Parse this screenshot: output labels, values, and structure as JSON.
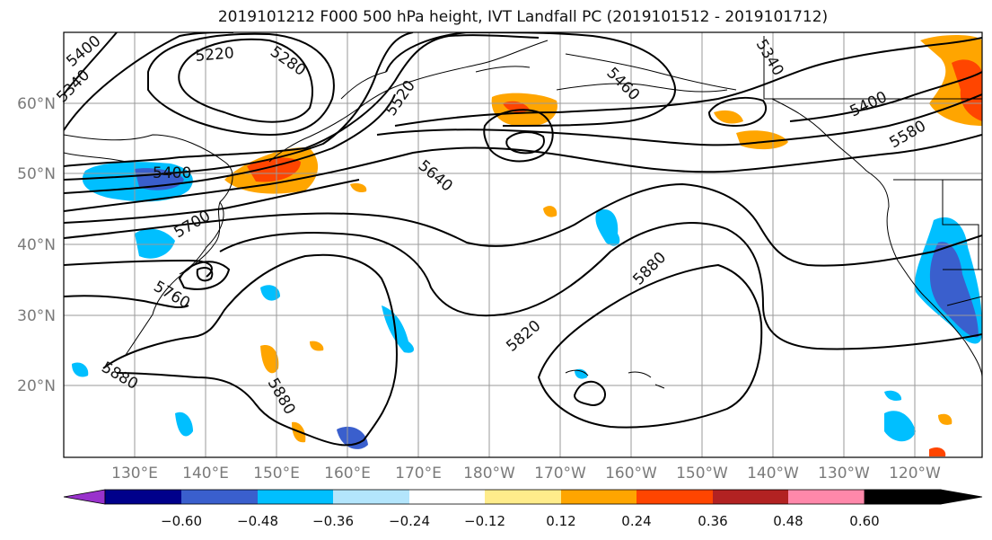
{
  "title": "2019101212 F000 500 hPa height, IVT Landfall PC (2019101512 - 2019101712)",
  "map": {
    "lat_labels": [
      "60°N",
      "50°N",
      "40°N",
      "30°N",
      "20°N"
    ],
    "lon_labels": [
      "130°E",
      "140°E",
      "150°E",
      "160°E",
      "170°E",
      "180°W",
      "170°W",
      "160°W",
      "150°W",
      "140°W",
      "130°W",
      "120°W"
    ],
    "contour_labels": [
      "5400",
      "5340",
      "5220",
      "5280",
      "5520",
      "5460",
      "5340",
      "5400",
      "5580",
      "5400",
      "5640",
      "5700",
      "5760",
      "5880",
      "5820",
      "5880",
      "5880"
    ]
  },
  "colorbar": {
    "ticks": [
      "−0.60",
      "−0.48",
      "−0.36",
      "−0.24",
      "−0.12",
      "0.12",
      "0.24",
      "0.36",
      "0.48",
      "0.60"
    ],
    "colors": [
      "#9932cc",
      "#00008b",
      "#3a5fcd",
      "#00bfff",
      "#b3e5fc",
      "#ffffff",
      "#ffec8b",
      "#ffa500",
      "#ff4500",
      "#b22222",
      "#ff88aa"
    ]
  }
}
